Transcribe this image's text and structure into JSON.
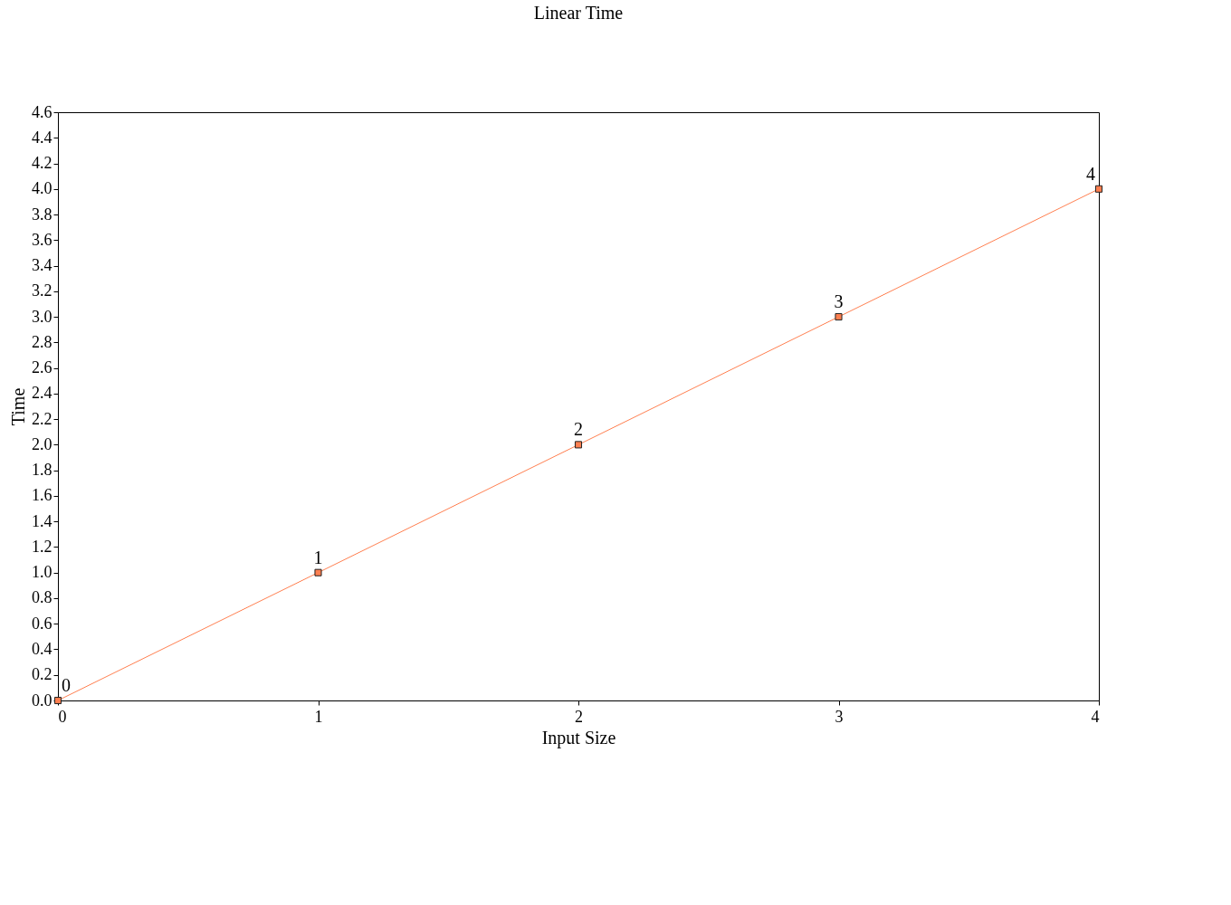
{
  "chart_data": {
    "type": "line",
    "title": "Linear Time",
    "xlabel": "Input Size",
    "ylabel": "Time",
    "x": [
      0,
      1,
      2,
      3,
      4
    ],
    "series": [
      {
        "color": "#ff7f50",
        "values": [
          0,
          1,
          2,
          3,
          4
        ]
      }
    ],
    "xlim": [
      0,
      4
    ],
    "xticks": [
      0,
      1,
      2,
      3,
      4
    ],
    "ylim": [
      0,
      4.6
    ],
    "yticks": [
      {
        "value": 0,
        "label": "0.0"
      },
      0.2,
      0.4,
      0.6,
      0.8,
      {
        "value": 1,
        "label": "1.0"
      },
      1.2,
      1.4,
      1.6,
      1.8,
      {
        "value": 2,
        "label": "2.0"
      },
      2.2,
      2.4,
      2.6,
      2.8,
      {
        "value": 3,
        "label": "3.0"
      },
      3.2,
      3.4,
      3.6,
      3.8,
      {
        "value": 4,
        "label": "4.0"
      },
      4.2,
      4.4,
      4.6
    ],
    "marker": "square",
    "line_style": "solid",
    "data_labels": true,
    "grid": false
  }
}
